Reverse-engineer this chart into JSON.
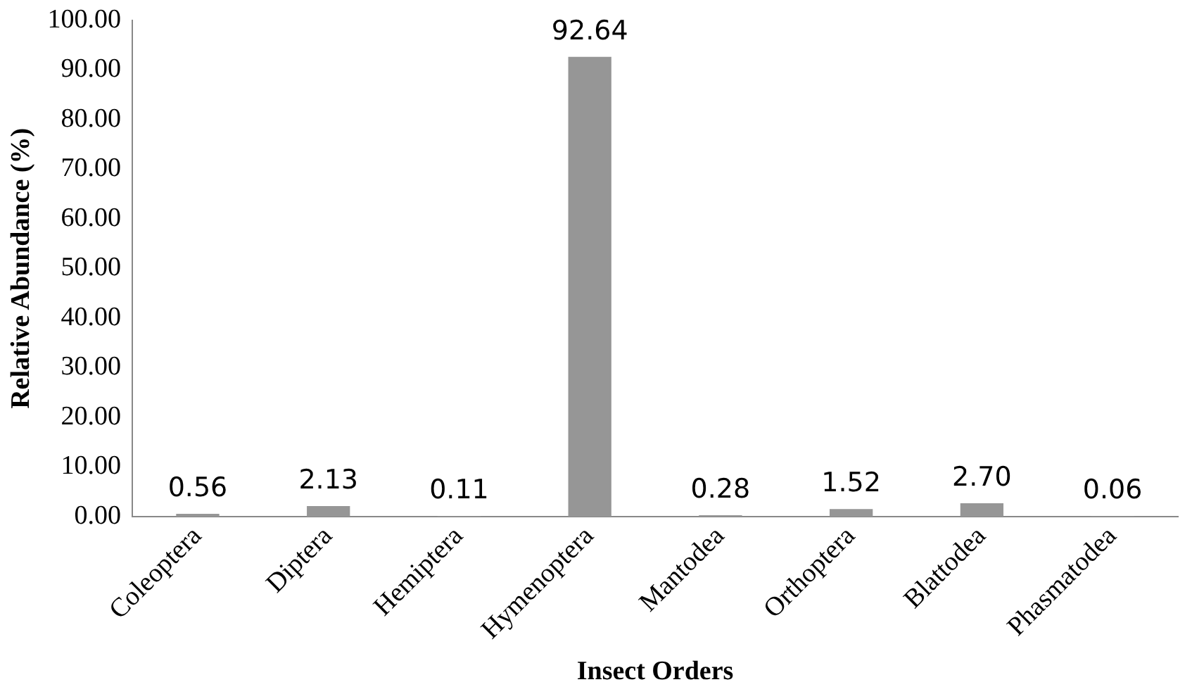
{
  "chart_data": {
    "type": "bar",
    "xlabel": "Insect Orders",
    "ylabel": "Relative Abundance (%)",
    "categories": [
      "Coleoptera",
      "Diptera",
      "Hemiptera",
      "Hymenoptera",
      "Mantodea",
      "Orthoptera",
      "Blattodea",
      "Phasmatodea"
    ],
    "values": [
      0.56,
      2.13,
      0.11,
      92.64,
      0.28,
      1.52,
      2.7,
      0.06
    ],
    "value_labels": [
      "0.56",
      "2.13",
      "0.11",
      "92.64",
      "0.28",
      "1.52",
      "2.70",
      "0.06"
    ],
    "color": "#969696",
    "ylim": [
      0,
      100
    ],
    "yticks": [
      {
        "value": 0,
        "label": "0.00"
      },
      {
        "value": 10,
        "label": "10.00"
      },
      {
        "value": 20,
        "label": "20.00"
      },
      {
        "value": 30,
        "label": "30.00"
      },
      {
        "value": 40,
        "label": "40.00"
      },
      {
        "value": 50,
        "label": "50.00"
      },
      {
        "value": 60,
        "label": "60.00"
      },
      {
        "value": 70,
        "label": "70.00"
      },
      {
        "value": 80,
        "label": "80.00"
      },
      {
        "value": 90,
        "label": "90.00"
      },
      {
        "value": 100,
        "label": "100.00"
      }
    ],
    "grid": false,
    "legend": false
  }
}
